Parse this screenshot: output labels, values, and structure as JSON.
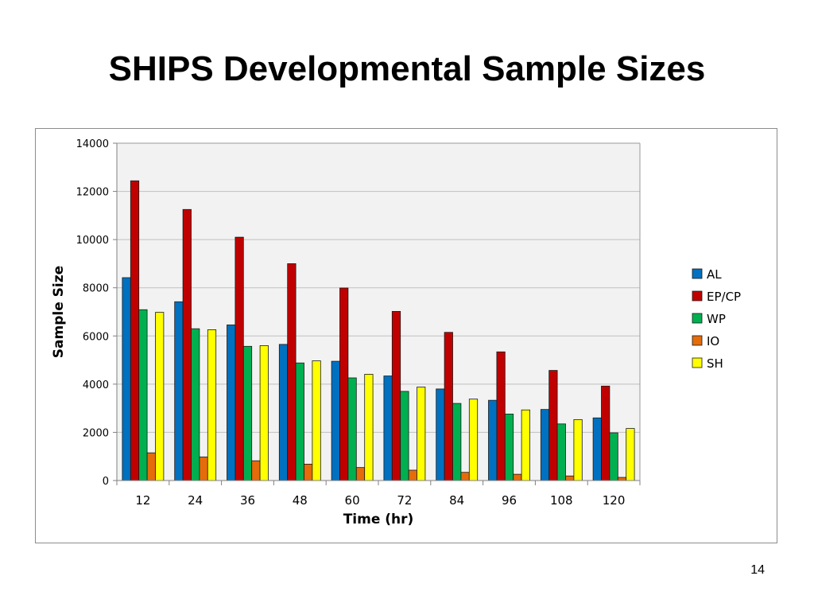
{
  "slide": {
    "title": "SHIPS Developmental Sample Sizes",
    "page_number": "14"
  },
  "colors": {
    "plot_background": "#f2f2f2",
    "gridline": "#bfbfbf",
    "bar_outline": "#1a1a1a"
  },
  "chart_data": {
    "type": "bar",
    "xlabel": "Time (hr)",
    "ylabel": "Sample Size",
    "ylim": [
      0,
      14000
    ],
    "yticks": [
      0,
      2000,
      4000,
      6000,
      8000,
      10000,
      12000,
      14000
    ],
    "grid": true,
    "legend_position": "right",
    "categories": [
      "12",
      "24",
      "36",
      "48",
      "60",
      "72",
      "84",
      "96",
      "108",
      "120"
    ],
    "series": [
      {
        "name": "AL",
        "color": "#0070c0",
        "values": [
          8420,
          7420,
          6460,
          5650,
          4950,
          4340,
          3800,
          3330,
          2950,
          2600
        ]
      },
      {
        "name": "EP/CP",
        "color": "#c00000",
        "values": [
          12440,
          11250,
          10100,
          9000,
          7990,
          7020,
          6150,
          5340,
          4570,
          3920
        ]
      },
      {
        "name": "WP",
        "color": "#00b050",
        "values": [
          7090,
          6300,
          5570,
          4880,
          4260,
          3700,
          3200,
          2760,
          2350,
          1980
        ]
      },
      {
        "name": "IO",
        "color": "#e46c0a",
        "values": [
          1150,
          980,
          820,
          680,
          540,
          430,
          340,
          260,
          190,
          130
        ]
      },
      {
        "name": "SH",
        "color": "#ffff00",
        "values": [
          6980,
          6260,
          5600,
          4970,
          4410,
          3880,
          3380,
          2930,
          2530,
          2160
        ]
      }
    ]
  }
}
